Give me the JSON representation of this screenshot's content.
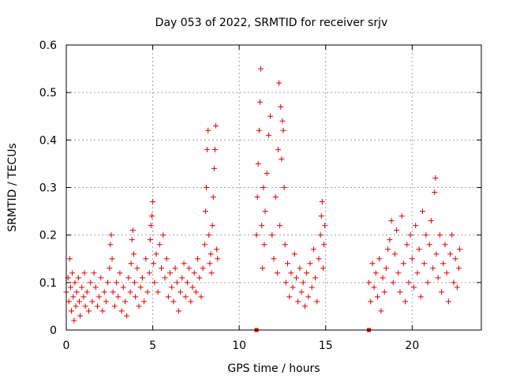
{
  "chart_data": {
    "type": "scatter",
    "title": "Day 053 of 2022, SRMTID for receiver srjv",
    "xlabel": "GPS time / hours",
    "ylabel": "SRMTID / TECUs",
    "xlim": [
      0,
      24
    ],
    "ylim": [
      0,
      0.6
    ],
    "x_ticks": [
      0,
      5,
      10,
      15,
      20
    ],
    "y_ticks": [
      0,
      0.1,
      0.2,
      0.3,
      0.4,
      0.5,
      0.6
    ],
    "x_tick_labels": [
      "0",
      "5",
      "10",
      "15",
      "20"
    ],
    "y_tick_labels": [
      "0",
      "0.1",
      "0.2",
      "0.3",
      "0.4",
      "0.5",
      "0.6"
    ],
    "grid": true,
    "marker": "plus",
    "color": "#e00000",
    "zero_markers": [
      11.0,
      17.5
    ],
    "series": [
      {
        "name": "SRMTID",
        "points": [
          [
            0.0,
            0.08
          ],
          [
            0.1,
            0.11
          ],
          [
            0.15,
            0.06
          ],
          [
            0.2,
            0.15
          ],
          [
            0.25,
            0.09
          ],
          [
            0.3,
            0.04
          ],
          [
            0.35,
            0.12
          ],
          [
            0.4,
            0.07
          ],
          [
            0.45,
            0.02
          ],
          [
            0.5,
            0.1
          ],
          [
            0.55,
            0.05
          ],
          [
            0.6,
            0.08
          ],
          [
            0.7,
            0.11
          ],
          [
            0.75,
            0.06
          ],
          [
            0.8,
            0.03
          ],
          [
            0.9,
            0.09
          ],
          [
            1.0,
            0.07
          ],
          [
            1.05,
            0.12
          ],
          [
            1.1,
            0.05
          ],
          [
            1.2,
            0.08
          ],
          [
            1.3,
            0.04
          ],
          [
            1.4,
            0.1
          ],
          [
            1.5,
            0.06
          ],
          [
            1.6,
            0.12
          ],
          [
            1.7,
            0.09
          ],
          [
            1.8,
            0.05
          ],
          [
            1.9,
            0.07
          ],
          [
            2.0,
            0.11
          ],
          [
            2.1,
            0.04
          ],
          [
            2.2,
            0.08
          ],
          [
            2.3,
            0.06
          ],
          [
            2.4,
            0.1
          ],
          [
            2.5,
            0.13
          ],
          [
            2.55,
            0.18
          ],
          [
            2.6,
            0.2
          ],
          [
            2.65,
            0.15
          ],
          [
            2.7,
            0.08
          ],
          [
            2.8,
            0.05
          ],
          [
            2.9,
            0.1
          ],
          [
            3.0,
            0.07
          ],
          [
            3.1,
            0.12
          ],
          [
            3.2,
            0.04
          ],
          [
            3.3,
            0.09
          ],
          [
            3.4,
            0.06
          ],
          [
            3.5,
            0.03
          ],
          [
            3.6,
            0.11
          ],
          [
            3.7,
            0.08
          ],
          [
            3.75,
            0.14
          ],
          [
            3.8,
            0.19
          ],
          [
            3.85,
            0.21
          ],
          [
            3.9,
            0.16
          ],
          [
            3.95,
            0.1
          ],
          [
            4.0,
            0.07
          ],
          [
            4.1,
            0.13
          ],
          [
            4.2,
            0.05
          ],
          [
            4.3,
            0.09
          ],
          [
            4.4,
            0.11
          ],
          [
            4.5,
            0.06
          ],
          [
            4.6,
            0.15
          ],
          [
            4.7,
            0.08
          ],
          [
            4.8,
            0.12
          ],
          [
            4.85,
            0.19
          ],
          [
            4.9,
            0.22
          ],
          [
            4.95,
            0.24
          ],
          [
            5.0,
            0.27
          ],
          [
            5.05,
            0.14
          ],
          [
            5.1,
            0.1
          ],
          [
            5.2,
            0.16
          ],
          [
            5.3,
            0.08
          ],
          [
            5.4,
            0.18
          ],
          [
            5.5,
            0.13
          ],
          [
            5.6,
            0.2
          ],
          [
            5.7,
            0.11
          ],
          [
            5.8,
            0.15
          ],
          [
            5.9,
            0.07
          ],
          [
            6.0,
            0.12
          ],
          [
            6.1,
            0.09
          ],
          [
            6.2,
            0.06
          ],
          [
            6.3,
            0.13
          ],
          [
            6.4,
            0.1
          ],
          [
            6.5,
            0.04
          ],
          [
            6.6,
            0.08
          ],
          [
            6.7,
            0.11
          ],
          [
            6.8,
            0.14
          ],
          [
            6.9,
            0.07
          ],
          [
            7.0,
            0.1
          ],
          [
            7.1,
            0.13
          ],
          [
            7.2,
            0.06
          ],
          [
            7.3,
            0.09
          ],
          [
            7.4,
            0.12
          ],
          [
            7.5,
            0.08
          ],
          [
            7.6,
            0.15
          ],
          [
            7.7,
            0.11
          ],
          [
            7.8,
            0.07
          ],
          [
            7.9,
            0.13
          ],
          [
            8.0,
            0.18
          ],
          [
            8.05,
            0.25
          ],
          [
            8.1,
            0.3
          ],
          [
            8.15,
            0.38
          ],
          [
            8.2,
            0.42
          ],
          [
            8.25,
            0.2
          ],
          [
            8.3,
            0.14
          ],
          [
            8.35,
            0.16
          ],
          [
            8.4,
            0.12
          ],
          [
            8.45,
            0.22
          ],
          [
            8.5,
            0.28
          ],
          [
            8.55,
            0.34
          ],
          [
            8.6,
            0.38
          ],
          [
            8.65,
            0.43
          ],
          [
            8.7,
            0.17
          ],
          [
            8.75,
            0.15
          ],
          [
            11.0,
            0.2
          ],
          [
            11.05,
            0.28
          ],
          [
            11.1,
            0.35
          ],
          [
            11.15,
            0.42
          ],
          [
            11.2,
            0.48
          ],
          [
            11.25,
            0.55
          ],
          [
            11.3,
            0.22
          ],
          [
            11.35,
            0.13
          ],
          [
            11.4,
            0.3
          ],
          [
            11.45,
            0.18
          ],
          [
            11.5,
            0.25
          ],
          [
            11.6,
            0.33
          ],
          [
            11.7,
            0.41
          ],
          [
            11.8,
            0.45
          ],
          [
            11.9,
            0.2
          ],
          [
            12.0,
            0.15
          ],
          [
            12.1,
            0.28
          ],
          [
            12.2,
            0.12
          ],
          [
            12.25,
            0.38
          ],
          [
            12.3,
            0.52
          ],
          [
            12.35,
            0.22
          ],
          [
            12.4,
            0.47
          ],
          [
            12.45,
            0.36
          ],
          [
            12.5,
            0.44
          ],
          [
            12.55,
            0.42
          ],
          [
            12.6,
            0.3
          ],
          [
            12.65,
            0.18
          ],
          [
            12.7,
            0.1
          ],
          [
            12.8,
            0.14
          ],
          [
            12.9,
            0.07
          ],
          [
            13.0,
            0.12
          ],
          [
            13.1,
            0.09
          ],
          [
            13.2,
            0.16
          ],
          [
            13.3,
            0.11
          ],
          [
            13.4,
            0.06
          ],
          [
            13.5,
            0.13
          ],
          [
            13.6,
            0.08
          ],
          [
            13.7,
            0.1
          ],
          [
            13.8,
            0.05
          ],
          [
            13.9,
            0.12
          ],
          [
            14.0,
            0.07
          ],
          [
            14.1,
            0.14
          ],
          [
            14.2,
            0.09
          ],
          [
            14.3,
            0.17
          ],
          [
            14.4,
            0.11
          ],
          [
            14.5,
            0.06
          ],
          [
            14.6,
            0.15
          ],
          [
            14.7,
            0.2
          ],
          [
            14.75,
            0.24
          ],
          [
            14.8,
            0.27
          ],
          [
            14.85,
            0.13
          ],
          [
            14.9,
            0.18
          ],
          [
            14.95,
            0.22
          ],
          [
            17.5,
            0.1
          ],
          [
            17.6,
            0.06
          ],
          [
            17.7,
            0.14
          ],
          [
            17.8,
            0.09
          ],
          [
            17.9,
            0.12
          ],
          [
            18.0,
            0.07
          ],
          [
            18.1,
            0.15
          ],
          [
            18.2,
            0.04
          ],
          [
            18.3,
            0.11
          ],
          [
            18.4,
            0.08
          ],
          [
            18.5,
            0.13
          ],
          [
            18.6,
            0.17
          ],
          [
            18.7,
            0.19
          ],
          [
            18.8,
            0.23
          ],
          [
            18.9,
            0.1
          ],
          [
            19.0,
            0.16
          ],
          [
            19.1,
            0.21
          ],
          [
            19.2,
            0.12
          ],
          [
            19.3,
            0.08
          ],
          [
            19.4,
            0.24
          ],
          [
            19.5,
            0.14
          ],
          [
            19.6,
            0.06
          ],
          [
            19.7,
            0.18
          ],
          [
            19.8,
            0.1
          ],
          [
            19.9,
            0.2
          ],
          [
            20.0,
            0.15
          ],
          [
            20.1,
            0.09
          ],
          [
            20.2,
            0.22
          ],
          [
            20.3,
            0.12
          ],
          [
            20.4,
            0.17
          ],
          [
            20.5,
            0.07
          ],
          [
            20.6,
            0.25
          ],
          [
            20.7,
            0.14
          ],
          [
            20.8,
            0.2
          ],
          [
            20.9,
            0.1
          ],
          [
            21.0,
            0.18
          ],
          [
            21.1,
            0.23
          ],
          [
            21.2,
            0.13
          ],
          [
            21.3,
            0.29
          ],
          [
            21.35,
            0.32
          ],
          [
            21.4,
            0.16
          ],
          [
            21.5,
            0.11
          ],
          [
            21.6,
            0.2
          ],
          [
            21.7,
            0.08
          ],
          [
            21.8,
            0.14
          ],
          [
            21.9,
            0.18
          ],
          [
            22.0,
            0.12
          ],
          [
            22.1,
            0.06
          ],
          [
            22.2,
            0.16
          ],
          [
            22.3,
            0.2
          ],
          [
            22.4,
            0.1
          ],
          [
            22.5,
            0.15
          ],
          [
            22.6,
            0.09
          ],
          [
            22.7,
            0.13
          ],
          [
            22.75,
            0.17
          ]
        ]
      }
    ]
  }
}
